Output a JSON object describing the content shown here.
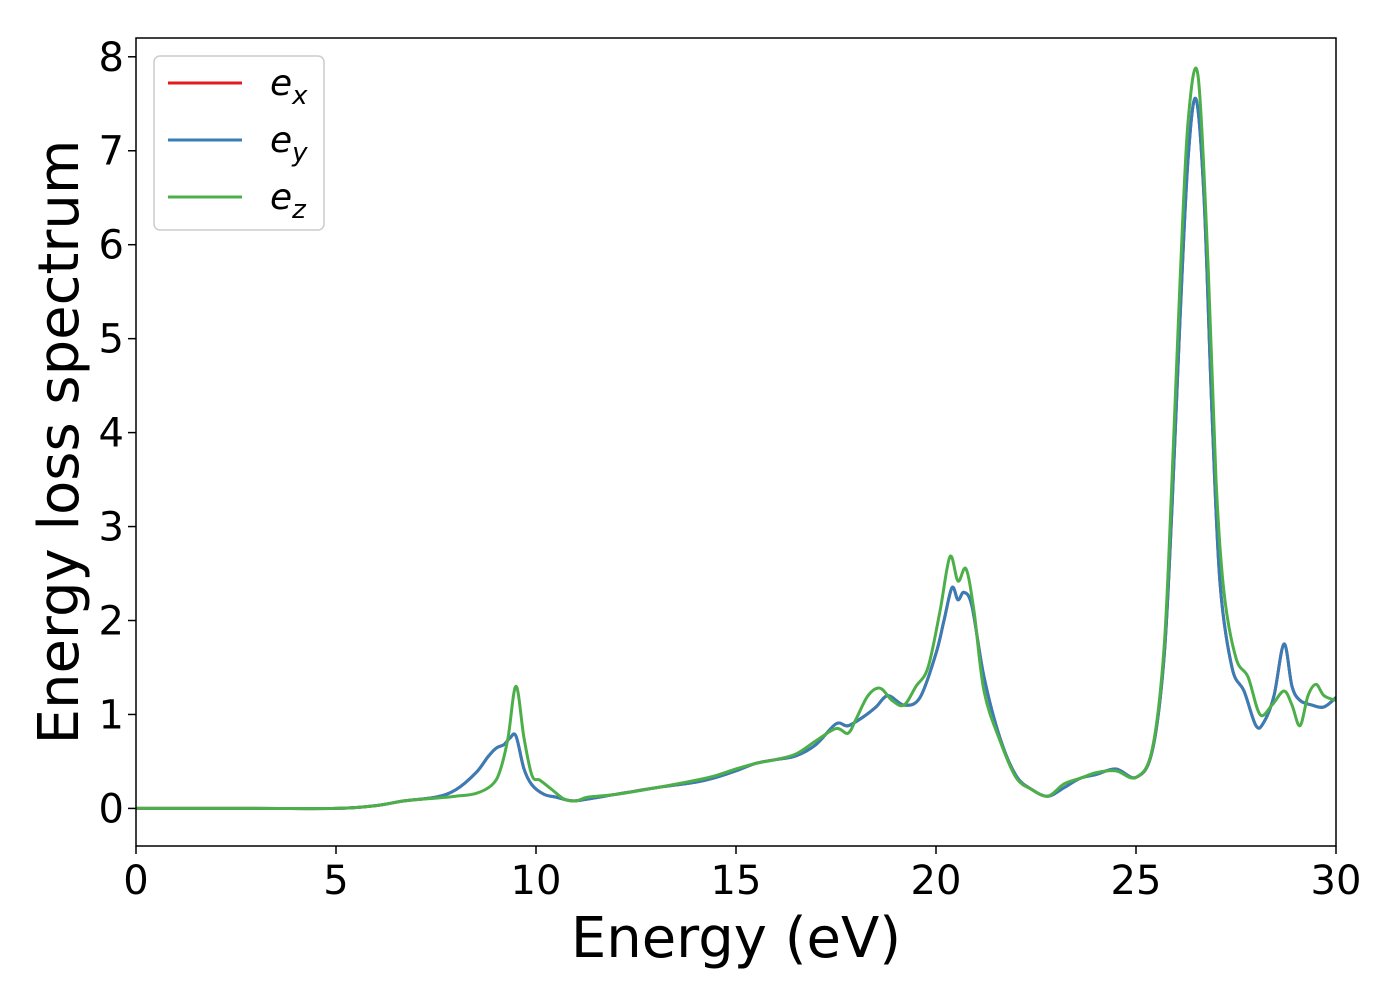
{
  "chart_data": {
    "type": "line",
    "title": "",
    "xlabel": "Energy (eV)",
    "ylabel": "Energy loss spectrum",
    "xlim": [
      0,
      30
    ],
    "ylim": [
      -0.4,
      8.2
    ],
    "xticks": [
      0,
      5,
      10,
      15,
      20,
      25,
      30
    ],
    "yticks": [
      0,
      1,
      2,
      3,
      4,
      5,
      6,
      7,
      8
    ],
    "grid": false,
    "legend_position": "top-left",
    "series": [
      {
        "name": "e_x",
        "legend_main": "e",
        "legend_sub": "x",
        "color": "#e41a1c",
        "x": [
          0,
          3,
          5,
          6,
          6.7,
          7.5,
          8.0,
          8.5,
          8.8,
          9.0,
          9.2,
          9.35,
          9.5,
          9.7,
          9.9,
          10.2,
          10.5,
          10.9,
          11.3,
          12,
          13,
          14,
          14.5,
          15,
          15.5,
          16,
          16.5,
          17,
          17.5,
          17.8,
          18.2,
          18.5,
          18.8,
          19.2,
          19.6,
          20.0,
          20.2,
          20.4,
          20.55,
          20.7,
          20.9,
          21.2,
          21.6,
          22.0,
          22.4,
          22.8,
          23.2,
          23.6,
          24.0,
          24.5,
          25.0,
          25.4,
          25.7,
          25.9,
          26.1,
          26.3,
          26.5,
          26.7,
          26.9,
          27.1,
          27.4,
          27.7,
          28.0,
          28.2,
          28.45,
          28.7,
          28.9,
          29.1,
          29.4,
          29.7,
          30.0
        ],
        "y": [
          0.0,
          0.0,
          0.0,
          0.03,
          0.08,
          0.12,
          0.2,
          0.38,
          0.55,
          0.64,
          0.68,
          0.75,
          0.77,
          0.42,
          0.25,
          0.15,
          0.12,
          0.08,
          0.1,
          0.15,
          0.22,
          0.28,
          0.33,
          0.4,
          0.48,
          0.52,
          0.56,
          0.68,
          0.9,
          0.88,
          0.98,
          1.08,
          1.2,
          1.1,
          1.18,
          1.65,
          2.0,
          2.35,
          2.22,
          2.3,
          2.15,
          1.4,
          0.75,
          0.35,
          0.2,
          0.13,
          0.22,
          0.32,
          0.36,
          0.42,
          0.33,
          0.6,
          1.6,
          3.2,
          5.2,
          6.9,
          7.55,
          6.5,
          4.2,
          2.4,
          1.5,
          1.25,
          0.88,
          0.92,
          1.2,
          1.75,
          1.3,
          1.15,
          1.1,
          1.08,
          1.18
        ]
      },
      {
        "name": "e_y",
        "legend_main": "e",
        "legend_sub": "y",
        "color": "#377eb8",
        "x": [
          0,
          3,
          5,
          6,
          6.7,
          7.5,
          8.0,
          8.5,
          8.8,
          9.0,
          9.2,
          9.35,
          9.5,
          9.7,
          9.9,
          10.2,
          10.5,
          10.9,
          11.3,
          12,
          13,
          14,
          14.5,
          15,
          15.5,
          16,
          16.5,
          17,
          17.5,
          17.8,
          18.2,
          18.5,
          18.8,
          19.2,
          19.6,
          20.0,
          20.2,
          20.4,
          20.55,
          20.7,
          20.9,
          21.2,
          21.6,
          22.0,
          22.4,
          22.8,
          23.2,
          23.6,
          24.0,
          24.5,
          25.0,
          25.4,
          25.7,
          25.9,
          26.1,
          26.3,
          26.5,
          26.7,
          26.9,
          27.1,
          27.4,
          27.7,
          28.0,
          28.2,
          28.45,
          28.7,
          28.9,
          29.1,
          29.4,
          29.7,
          30.0
        ],
        "y": [
          0.0,
          0.0,
          0.0,
          0.03,
          0.08,
          0.12,
          0.2,
          0.38,
          0.55,
          0.64,
          0.68,
          0.75,
          0.77,
          0.42,
          0.25,
          0.15,
          0.12,
          0.08,
          0.1,
          0.15,
          0.22,
          0.28,
          0.33,
          0.4,
          0.48,
          0.52,
          0.56,
          0.68,
          0.9,
          0.88,
          0.98,
          1.08,
          1.2,
          1.1,
          1.18,
          1.65,
          2.0,
          2.35,
          2.22,
          2.3,
          2.15,
          1.4,
          0.75,
          0.35,
          0.2,
          0.13,
          0.22,
          0.32,
          0.36,
          0.42,
          0.33,
          0.6,
          1.6,
          3.2,
          5.2,
          6.9,
          7.55,
          6.5,
          4.2,
          2.4,
          1.5,
          1.25,
          0.88,
          0.92,
          1.2,
          1.75,
          1.3,
          1.15,
          1.1,
          1.08,
          1.18
        ]
      },
      {
        "name": "e_z",
        "legend_main": "e",
        "legend_sub": "z",
        "color": "#4daf4a",
        "x": [
          0,
          3,
          5,
          6,
          6.7,
          7.5,
          8.0,
          8.5,
          8.9,
          9.1,
          9.3,
          9.5,
          9.7,
          9.9,
          10.1,
          10.4,
          10.7,
          11.0,
          11.3,
          12,
          13,
          14,
          14.5,
          15,
          15.5,
          16,
          16.5,
          17,
          17.5,
          17.8,
          18.0,
          18.3,
          18.6,
          18.9,
          19.2,
          19.5,
          19.8,
          20.1,
          20.35,
          20.55,
          20.75,
          20.95,
          21.2,
          21.6,
          22.0,
          22.4,
          22.8,
          23.2,
          23.6,
          24.0,
          24.5,
          25.0,
          25.4,
          25.7,
          25.9,
          26.1,
          26.3,
          26.55,
          26.8,
          27.0,
          27.2,
          27.5,
          27.8,
          28.1,
          28.4,
          28.7,
          28.9,
          29.1,
          29.3,
          29.5,
          29.7,
          30.0
        ],
        "y": [
          0.0,
          0.0,
          0.0,
          0.03,
          0.08,
          0.11,
          0.13,
          0.16,
          0.25,
          0.4,
          0.75,
          1.3,
          0.75,
          0.35,
          0.3,
          0.2,
          0.1,
          0.08,
          0.12,
          0.15,
          0.22,
          0.3,
          0.35,
          0.42,
          0.48,
          0.52,
          0.58,
          0.72,
          0.85,
          0.8,
          0.95,
          1.2,
          1.28,
          1.15,
          1.1,
          1.3,
          1.5,
          2.1,
          2.68,
          2.42,
          2.55,
          2.1,
          1.25,
          0.72,
          0.33,
          0.2,
          0.13,
          0.26,
          0.32,
          0.38,
          0.4,
          0.33,
          0.62,
          1.7,
          3.5,
          5.6,
          7.3,
          7.8,
          5.8,
          3.5,
          2.3,
          1.6,
          1.4,
          1.0,
          1.1,
          1.25,
          1.1,
          0.88,
          1.2,
          1.32,
          1.2,
          1.15
        ]
      }
    ]
  }
}
